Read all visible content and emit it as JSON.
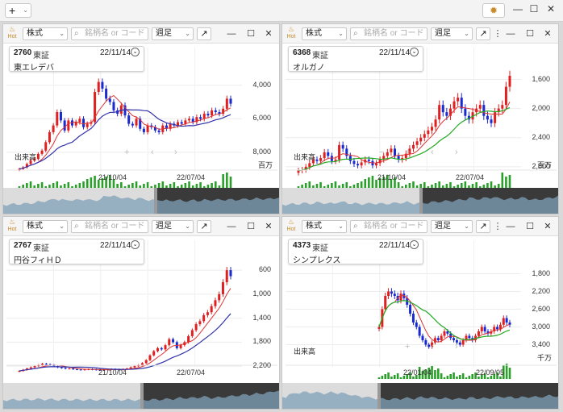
{
  "app": {
    "add_label": "+",
    "add_chevron": "⌄",
    "gear_icon": "gear-icon",
    "minimize": "—",
    "maximize": "☐",
    "close": "✕"
  },
  "panel_common": {
    "hot_label": "Hot",
    "type_select": "株式",
    "search_placeholder": "銘柄名 or コード",
    "period_select": "週足",
    "popout": "↗",
    "menu": "⋮",
    "minimize": "—",
    "maximize": "☐",
    "close": "✕",
    "volume_label": "出来高",
    "nav_plus": "+",
    "nav_minus": "−",
    "nav_left": "‹",
    "nav_right": "›"
  },
  "panels": [
    {
      "code": "2760",
      "market": "東証",
      "date": "22/11/14",
      "name": "東エレデバ",
      "y_ticks": [
        "8,000",
        "6,000",
        "4,000"
      ],
      "x_ticks": [
        "21/10/04",
        "22/07/04"
      ],
      "volume_unit": "百万"
    },
    {
      "code": "6368",
      "market": "東証",
      "date": "22/11/14",
      "name": "オルガノ",
      "y_ticks": [
        "2,800",
        "2,400",
        "2,000",
        "1,600"
      ],
      "x_ticks": [
        "21/10/04",
        "22/07/04"
      ],
      "volume_unit": "百万"
    },
    {
      "code": "2767",
      "market": "東証",
      "date": "22/11/14",
      "name": "円谷フィＨＤ",
      "y_ticks": [
        "2,200",
        "1,800",
        "1,400",
        "1,000",
        "600"
      ],
      "x_ticks": [
        "21/10/04",
        "22/07/04"
      ],
      "volume_unit": ""
    },
    {
      "code": "4373",
      "market": "東証",
      "date": "22/11/14",
      "name": "シンプレクス",
      "y_ticks": [
        "3,400",
        "3,000",
        "2,600",
        "2,200",
        "1,800"
      ],
      "x_ticks": [
        "22/01/04",
        "22/09/05"
      ],
      "volume_unit": "千万"
    }
  ],
  "chart_data": [
    {
      "type": "candlestick",
      "title": "2760 東エレデバ",
      "x_ticks": [
        "21/10/04",
        "22/07/04"
      ],
      "y_ticks": [
        4000,
        6000,
        8000
      ],
      "ylim": [
        2500,
        9000
      ],
      "close_trend": [
        3000,
        3100,
        3300,
        3500,
        3600,
        3900,
        4100,
        4600,
        5200,
        5600,
        6400,
        5900,
        5300,
        5900,
        5600,
        5800,
        6000,
        5500,
        5700,
        5800,
        7600,
        8200,
        7800,
        7200,
        7000,
        6500,
        6300,
        6800,
        6200,
        5700,
        5600,
        6000,
        5400,
        5200,
        5600,
        5500,
        5300,
        5200,
        5600,
        5400,
        5700,
        5600,
        5800,
        5700,
        5900,
        6000,
        5800,
        6100,
        6000,
        6300,
        6200,
        6500,
        6400,
        6300,
        6600,
        7200,
        6900
      ]
    },
    {
      "type": "candlestick",
      "title": "6368 オルガノ",
      "x_ticks": [
        "21/10/04",
        "22/07/04"
      ],
      "y_ticks": [
        1600,
        2000,
        2400,
        2800
      ],
      "ylim": [
        1400,
        2950
      ],
      "close_trend": [
        1550,
        1560,
        1600,
        1650,
        1700,
        1680,
        1720,
        1800,
        1750,
        1680,
        1700,
        1900,
        1850,
        1750,
        1680,
        1640,
        1620,
        1660,
        1700,
        1680,
        1620,
        1650,
        1700,
        1750,
        1800,
        1850,
        1750,
        1700,
        1720,
        1780,
        1850,
        1900,
        1950,
        2000,
        2050,
        2100,
        2150,
        2250,
        2450,
        2350,
        2300,
        2400,
        2500,
        2550,
        2400,
        2300,
        2250,
        2350,
        2400,
        2450,
        2300,
        2250,
        2200,
        2350,
        2400,
        2450,
        2700,
        2850
      ]
    },
    {
      "type": "candlestick",
      "title": "2767 円谷フィＨＤ",
      "x_ticks": [
        "21/10/04",
        "22/07/04"
      ],
      "y_ticks": [
        600,
        1000,
        1400,
        1800,
        2200
      ],
      "ylim": [
        400,
        2350
      ],
      "close_trend": [
        520,
        540,
        560,
        580,
        600,
        620,
        640,
        630,
        620,
        600,
        580,
        570,
        560,
        560,
        550,
        545,
        540,
        545,
        550,
        545,
        540,
        535,
        540,
        545,
        550,
        545,
        540,
        550,
        560,
        580,
        600,
        620,
        650,
        700,
        780,
        850,
        900,
        880,
        950,
        1050,
        1000,
        900,
        950,
        1000,
        1100,
        1200,
        1300,
        1350,
        1450,
        1500,
        1600,
        1700,
        1800,
        2000,
        2200,
        2100
      ]
    },
    {
      "type": "candlestick",
      "title": "4373 シンプレクス",
      "x_ticks": [
        "22/01/04",
        "22/09/05"
      ],
      "y_ticks": [
        1800,
        2200,
        2600,
        3000,
        3400
      ],
      "ylim": [
        1500,
        3500
      ],
      "close_trend": [
        2200,
        2600,
        2900,
        3000,
        2950,
        2900,
        2800,
        2950,
        2850,
        2700,
        2500,
        2300,
        2200,
        2000,
        1900,
        1800,
        1750,
        1850,
        1950,
        1900,
        2000,
        2100,
        2050,
        1950,
        1900,
        1850,
        1800,
        1900,
        2000,
        1950,
        1900,
        2000,
        2100,
        2200,
        2100,
        2050,
        2100,
        2200,
        2150,
        2250,
        2400,
        2300,
        2250
      ]
    }
  ]
}
